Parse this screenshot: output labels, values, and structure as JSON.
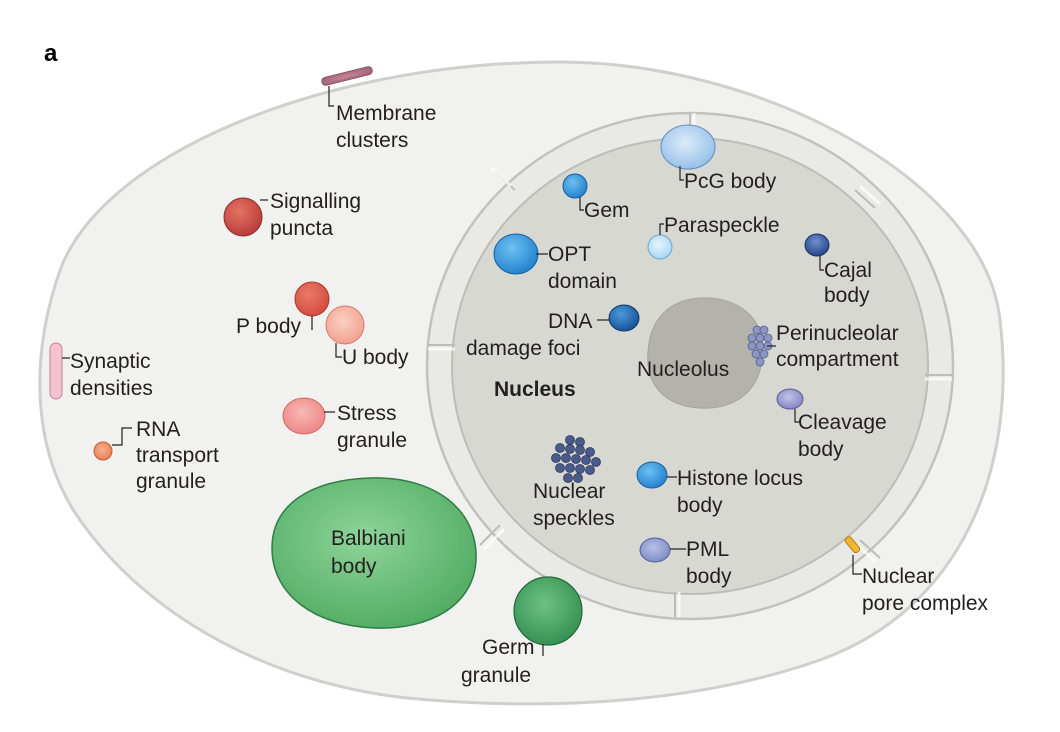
{
  "panel_label": "a",
  "cell": {
    "cytoplasm": {
      "membrane_clusters": [
        "Membrane",
        "clusters"
      ],
      "signalling_puncta": [
        "Signalling",
        "puncta"
      ],
      "p_body": [
        "P body"
      ],
      "u_body": [
        "U body"
      ],
      "synaptic_densities": [
        "Synaptic",
        "densities"
      ],
      "stress_granule": [
        "Stress",
        "granule"
      ],
      "rna_transport_granule": [
        "RNA",
        "transport",
        "granule"
      ],
      "balbiani_body": [
        "Balbiani",
        "body"
      ],
      "germ_granule": [
        "Germ",
        "granule"
      ]
    },
    "nucleus": {
      "title": "Nucleus",
      "pcg_body": [
        "PcG body"
      ],
      "gem": [
        "Gem"
      ],
      "paraspeckle": [
        "Paraspeckle"
      ],
      "opt_domain": [
        "OPT",
        "domain"
      ],
      "cajal_body": [
        "Cajal",
        "body"
      ],
      "dna_damage_foci": [
        "DNA",
        "damage foci"
      ],
      "nucleolus": [
        "Nucleolus"
      ],
      "perinucleolar_compartment": [
        "Perinucleolar",
        "compartment"
      ],
      "cleavage_body": [
        "Cleavage",
        "body"
      ],
      "nuclear_speckles": [
        "Nuclear",
        "speckles"
      ],
      "histone_locus_body": [
        "Histone locus",
        "body"
      ],
      "pml_body": [
        "PML",
        "body"
      ],
      "nuclear_pore_complex": [
        "Nuclear",
        "pore complex"
      ]
    }
  },
  "colors": {
    "cell_fill": "#f1f1ef",
    "cell_stroke": "#cfcfcb",
    "nucleus_fill": "#d9d9d5",
    "envelope_fill": "#e6e6e2",
    "envelope_stroke": "#b9b9b4",
    "nucleolus": "#b1b1a9",
    "balbiani": "#5db86e",
    "germ": "#3e9c5a",
    "red_dark": "#b7393a",
    "red": "#d65145",
    "salmon": "#f0a89a",
    "pink": "#ef8c8c",
    "orange": "#ef8b5e",
    "blue": "#2f8fd8",
    "blue_dark": "#1a5fa8",
    "light_blue": "#9fc6ea",
    "pale_blue": "#b9ddf4",
    "navy": "#2c4f93",
    "lavender": "#8f8fc8",
    "speckle": "#4b5a85",
    "pore": "#f2b631"
  }
}
